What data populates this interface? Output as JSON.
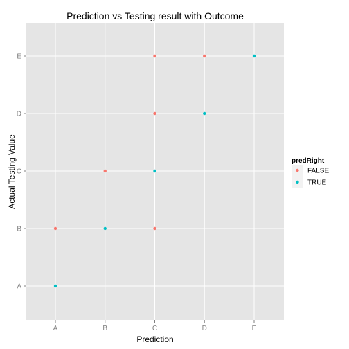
{
  "chart_data": {
    "type": "scatter",
    "title": "Prediction vs Testing result with Outcome",
    "xlabel": "Prediction",
    "ylabel": "Actual Testing Value",
    "x_categories": [
      "A",
      "B",
      "C",
      "D",
      "E"
    ],
    "y_categories": [
      "A",
      "B",
      "C",
      "D",
      "E"
    ],
    "grid": true,
    "legend": {
      "title": "predRight",
      "placement": "right",
      "entries": [
        {
          "label": "FALSE",
          "color": "#F8766D"
        },
        {
          "label": "TRUE",
          "color": "#00BFC4"
        }
      ]
    },
    "points": [
      {
        "x": "A",
        "y": "A",
        "predRight": "TRUE"
      },
      {
        "x": "A",
        "y": "B",
        "predRight": "FALSE"
      },
      {
        "x": "B",
        "y": "B",
        "predRight": "TRUE"
      },
      {
        "x": "B",
        "y": "C",
        "predRight": "FALSE"
      },
      {
        "x": "C",
        "y": "B",
        "predRight": "FALSE"
      },
      {
        "x": "C",
        "y": "C",
        "predRight": "TRUE"
      },
      {
        "x": "C",
        "y": "D",
        "predRight": "FALSE"
      },
      {
        "x": "C",
        "y": "E",
        "predRight": "FALSE"
      },
      {
        "x": "D",
        "y": "D",
        "predRight": "TRUE"
      },
      {
        "x": "D",
        "y": "E",
        "predRight": "FALSE"
      },
      {
        "x": "E",
        "y": "E",
        "predRight": "TRUE"
      }
    ]
  },
  "colors": {
    "panel_background": "#E5E5E5",
    "gridline": "#FFFFFF",
    "false_color": "#F8766D",
    "true_color": "#00BFC4"
  }
}
